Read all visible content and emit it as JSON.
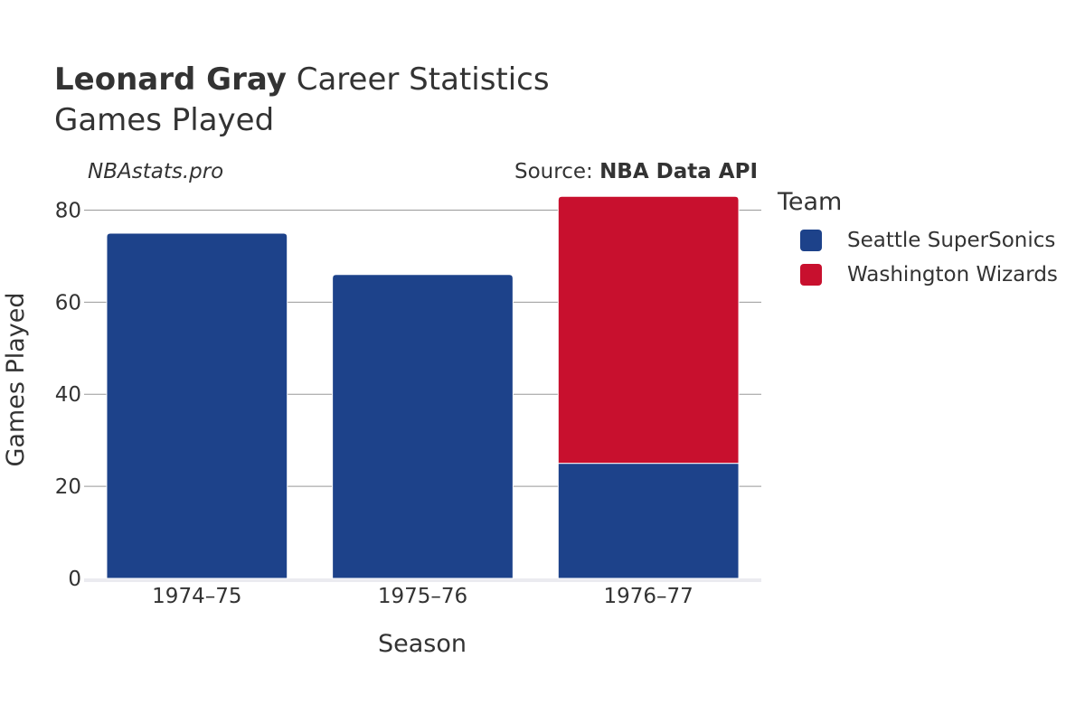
{
  "header": {
    "player_name": "Leonard Gray",
    "title_rest": "Career Statistics",
    "subtitle": "Games Played",
    "watermark": "NBAstats.pro",
    "source_prefix": "Source: ",
    "source_name": "NBA Data API"
  },
  "legend": {
    "title": "Team",
    "items": [
      {
        "label": "Seattle SuperSonics",
        "color": "#1d428a"
      },
      {
        "label": "Washington Wizards",
        "color": "#c8102e"
      }
    ]
  },
  "chart_data": {
    "type": "bar",
    "stacked": true,
    "categories": [
      "1974–75",
      "1975–76",
      "1976–77"
    ],
    "series": [
      {
        "name": "Seattle SuperSonics",
        "color": "#1d428a",
        "values": [
          75,
          66,
          25
        ]
      },
      {
        "name": "Washington Wizards",
        "color": "#c8102e",
        "values": [
          0,
          0,
          58
        ]
      }
    ],
    "xlabel": "Season",
    "ylabel": "Games Played",
    "ylim": [
      0,
      85
    ],
    "yticks": [
      0,
      20,
      40,
      60,
      80
    ],
    "grid": true,
    "legend_position": "right"
  }
}
